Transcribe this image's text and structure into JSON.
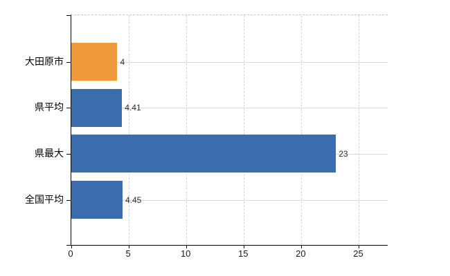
{
  "chart_data": {
    "type": "bar",
    "orientation": "horizontal",
    "title": "",
    "categories": [
      "大田原市",
      "県平均",
      "県最大",
      "全国平均"
    ],
    "values": [
      4,
      4.41,
      23,
      4.45
    ],
    "value_labels": [
      "4",
      "4.41",
      "23",
      "4.45"
    ],
    "series": [
      {
        "name": "",
        "values": [
          4,
          4.41,
          23,
          4.45
        ]
      }
    ],
    "bar_colors": [
      "#EE9A3B",
      "#3A6CAE",
      "#3A6CAE",
      "#3A6CAE"
    ],
    "xlabel": "",
    "ylabel": "",
    "xlim": [
      0,
      27.5
    ],
    "xticks": [
      0,
      5,
      10,
      15,
      20,
      25
    ],
    "xtick_labels": [
      "0",
      "5",
      "10",
      "15",
      "20",
      "25"
    ],
    "grid": {
      "vertical_style": "dashed",
      "horizontal_style": "solid",
      "color": "#d9d9d9"
    },
    "legend": "none",
    "background_color": "#ffffff",
    "axis_color": "#000000"
  }
}
